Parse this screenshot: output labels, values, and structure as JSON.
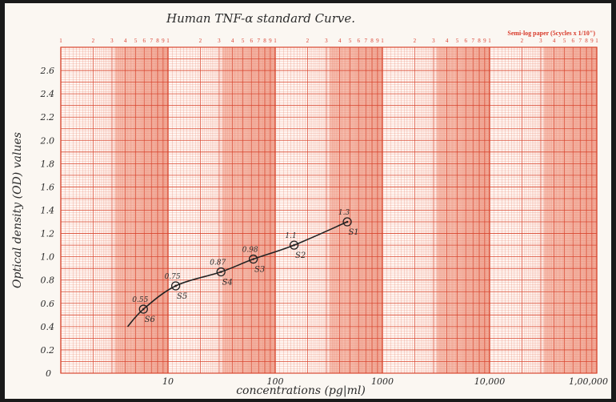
{
  "chart_data": {
    "type": "line",
    "title": "Human TNF-α standard Curve.",
    "paper_label": "Semi-log paper (5cycles x 1/10\")",
    "xlabel": "concentrations (pg|ml)",
    "ylabel": "Optical density (OD) values",
    "x_scale": "log",
    "xlim": [
      1,
      100000
    ],
    "ylim": [
      0,
      2.8
    ],
    "x_tick_labels": [
      {
        "value": 1,
        "label": "0"
      },
      {
        "value": 10,
        "label": "10"
      },
      {
        "value": 100,
        "label": "100"
      },
      {
        "value": 1000,
        "label": "1000"
      },
      {
        "value": 10000,
        "label": "10,000"
      },
      {
        "value": 100000,
        "label": "1,00,000"
      }
    ],
    "y_tick_labels": [
      {
        "value": 0.2,
        "label": "0.2"
      },
      {
        "value": 0.4,
        "label": "0.4"
      },
      {
        "value": 0.6,
        "label": "0.6"
      },
      {
        "value": 0.8,
        "label": "0.8"
      },
      {
        "value": 1.0,
        "label": "1.0"
      },
      {
        "value": 1.2,
        "label": "1.2"
      },
      {
        "value": 1.4,
        "label": "1.4"
      },
      {
        "value": 1.6,
        "label": "1.6"
      },
      {
        "value": 1.8,
        "label": "1.8"
      },
      {
        "value": 2.0,
        "label": "2.0"
      },
      {
        "value": 2.2,
        "label": "2.2"
      },
      {
        "value": 2.4,
        "label": "2.4"
      },
      {
        "value": 2.6,
        "label": "2.6"
      }
    ],
    "cycle_digits": [
      "1",
      "2",
      "3",
      "4",
      "5",
      "6",
      "7",
      "8",
      "9",
      "1"
    ],
    "grid": true,
    "points": [
      {
        "x": 5.9,
        "y": 0.55,
        "value_label": "0.55",
        "name": "S6"
      },
      {
        "x": 11.8,
        "y": 0.75,
        "value_label": "0.75",
        "name": "S5"
      },
      {
        "x": 31.2,
        "y": 0.87,
        "value_label": "0.87",
        "name": "S4"
      },
      {
        "x": 62.5,
        "y": 0.98,
        "value_label": "0.98",
        "name": "S3"
      },
      {
        "x": 150,
        "y": 1.1,
        "value_label": "1.1",
        "name": "S2"
      },
      {
        "x": 470,
        "y": 1.3,
        "value_label": "1.3",
        "name": "S1"
      }
    ],
    "curve_start": {
      "x": 4.2,
      "y": 0.4
    }
  }
}
